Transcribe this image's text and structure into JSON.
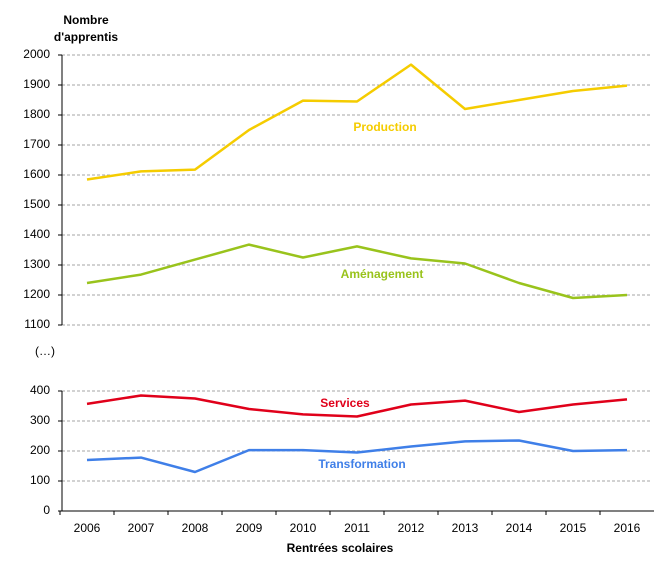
{
  "chart_data": [
    {
      "type": "line",
      "title": "Nombre d'apprentis",
      "ylim": [
        1100,
        2000
      ],
      "yticks": [
        1100,
        1200,
        1300,
        1400,
        1500,
        1600,
        1700,
        1800,
        1900,
        2000
      ],
      "grid": true,
      "series": [
        {
          "name": "Production",
          "color": "#f5cc00",
          "values": [
            1585,
            1612,
            1618,
            1750,
            1848,
            1845,
            1968,
            1820,
            1850,
            1880,
            1898
          ]
        },
        {
          "name": "Aménagement",
          "color": "#99c31c",
          "values": [
            1240,
            1268,
            1318,
            1368,
            1325,
            1362,
            1322,
            1305,
            1240,
            1190,
            1200
          ]
        }
      ]
    },
    {
      "type": "line",
      "annotation": "(…)",
      "x_label": "Rentrées scolaires",
      "categories": [
        "2006",
        "2007",
        "2008",
        "2009",
        "2010",
        "2011",
        "2012",
        "2013",
        "2014",
        "2015",
        "2016"
      ],
      "ylim": [
        0,
        400
      ],
      "yticks": [
        0,
        100,
        200,
        300,
        400
      ],
      "grid": true,
      "series": [
        {
          "name": "Services",
          "color": "#e0001a",
          "values": [
            357,
            385,
            375,
            340,
            322,
            315,
            355,
            368,
            330,
            355,
            372
          ]
        },
        {
          "name": "Transformation",
          "color": "#3f7fe8",
          "values": [
            170,
            178,
            130,
            203,
            203,
            195,
            215,
            232,
            235,
            200,
            203
          ]
        }
      ]
    }
  ]
}
